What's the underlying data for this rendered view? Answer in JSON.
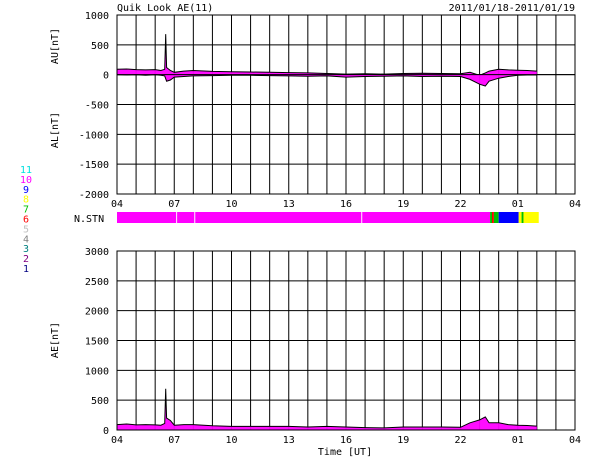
{
  "chart_data": {
    "type": "line",
    "title": "Quik Look AE(11)",
    "date_range": "2011/01/18-2011/01/19",
    "x_tick_labels": [
      "04",
      "07",
      "10",
      "13",
      "16",
      "19",
      "22",
      "01",
      "04"
    ],
    "x_ticks_hours": [
      4,
      7,
      10,
      13,
      16,
      19,
      22,
      25,
      28
    ],
    "xlim_hours": [
      4,
      28
    ],
    "xlabel": "Time [UT]",
    "station_label": "N.STN",
    "station_legend": [
      {
        "label": "11",
        "color": "#00e0e0"
      },
      {
        "label": "10",
        "color": "#ff00ff"
      },
      {
        "label": "9",
        "color": "#0000ff"
      },
      {
        "label": "8",
        "color": "#ffff00"
      },
      {
        "label": "7",
        "color": "#00c000"
      },
      {
        "label": "6",
        "color": "#ff0000"
      },
      {
        "label": "5",
        "color": "#c0c0c0"
      },
      {
        "label": "4",
        "color": "#808080"
      },
      {
        "label": "3",
        "color": "#008080"
      },
      {
        "label": "2",
        "color": "#800080"
      },
      {
        "label": "1",
        "color": "#000080"
      }
    ],
    "station_segments": [
      {
        "start": 4.0,
        "end": 7.1,
        "station": 10
      },
      {
        "start": 7.15,
        "end": 8.05,
        "station": 10
      },
      {
        "start": 8.1,
        "end": 16.8,
        "station": 10
      },
      {
        "start": 16.85,
        "end": 23.55,
        "station": 10
      },
      {
        "start": 23.55,
        "end": 23.65,
        "station": 7
      },
      {
        "start": 23.65,
        "end": 23.75,
        "station": 6
      },
      {
        "start": 23.75,
        "end": 24.0,
        "station": 7
      },
      {
        "start": 24.0,
        "end": 25.05,
        "station": 9
      },
      {
        "start": 25.05,
        "end": 25.2,
        "station": 8
      },
      {
        "start": 25.2,
        "end": 25.3,
        "station": 7
      },
      {
        "start": 25.3,
        "end": 26.1,
        "station": 8
      }
    ],
    "au_al_panel": {
      "ylabel_top": "AU[nT]",
      "ylabel_bottom": "AL[nT]",
      "ylim": [
        -2000,
        1000
      ],
      "yticks": [
        1000,
        500,
        0,
        -500,
        -1000,
        -1500,
        -2000
      ],
      "series": [
        {
          "key": "AU",
          "x": [
            4,
            4.5,
            5,
            5.5,
            6,
            6.3,
            6.5,
            6.55,
            6.6,
            6.8,
            7,
            7.5,
            8,
            9,
            10,
            11,
            12,
            13,
            14,
            15,
            16,
            17,
            18,
            19,
            20,
            21,
            22,
            22.5,
            23,
            23.3,
            23.5,
            24,
            24.5,
            25,
            25.5,
            26
          ],
          "y": [
            90,
            95,
            85,
            80,
            85,
            70,
            90,
            680,
            120,
            70,
            40,
            60,
            70,
            55,
            50,
            45,
            40,
            35,
            30,
            20,
            10,
            15,
            10,
            20,
            25,
            20,
            15,
            40,
            -10,
            30,
            60,
            90,
            80,
            75,
            70,
            60
          ]
        },
        {
          "key": "AL",
          "x": [
            4,
            4.5,
            5,
            5.5,
            6,
            6.3,
            6.5,
            6.6,
            6.8,
            7,
            7.5,
            8,
            9,
            10,
            11,
            12,
            13,
            14,
            15,
            16,
            17,
            18,
            19,
            20,
            21,
            22,
            22.5,
            23,
            23.3,
            23.5,
            24,
            24.5,
            25,
            25.5,
            26
          ],
          "y": [
            0,
            -5,
            0,
            -10,
            0,
            -10,
            -20,
            -110,
            -90,
            -40,
            -30,
            -20,
            -15,
            -10,
            -10,
            -15,
            -20,
            -25,
            -20,
            -40,
            -30,
            -25,
            -20,
            -30,
            -25,
            -30,
            -80,
            -160,
            -190,
            -110,
            -60,
            -30,
            -10,
            -5,
            -5
          ]
        }
      ]
    },
    "ae_panel": {
      "ylabel": "AE[nT]",
      "ylim": [
        0,
        3000
      ],
      "yticks": [
        3000,
        2500,
        2000,
        1500,
        1000,
        500,
        0
      ],
      "series": [
        {
          "key": "AE",
          "x": [
            4,
            4.5,
            5,
            5.5,
            6,
            6.3,
            6.5,
            6.55,
            6.6,
            6.8,
            7,
            7.5,
            8,
            9,
            10,
            11,
            12,
            13,
            14,
            15,
            16,
            17,
            18,
            19,
            20,
            21,
            22,
            22.5,
            23,
            23.3,
            23.5,
            24,
            24.5,
            25,
            25.5,
            26
          ],
          "y": [
            90,
            100,
            85,
            90,
            85,
            80,
            110,
            690,
            200,
            160,
            80,
            90,
            90,
            70,
            60,
            60,
            60,
            60,
            50,
            60,
            50,
            40,
            35,
            50,
            50,
            50,
            45,
            120,
            170,
            220,
            120,
            120,
            90,
            80,
            75,
            65
          ]
        }
      ]
    }
  }
}
